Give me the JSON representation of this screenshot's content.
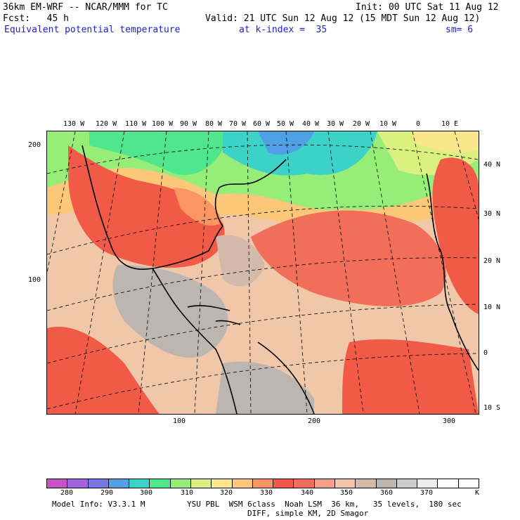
{
  "header": {
    "model": "36km EM-WRF -- NCAR/MMM for TC",
    "init": "Init: 00 UTC Sat 11 Aug 12",
    "fcst": "Fcst:   45 h",
    "valid": "Valid: 21 UTC Sun 12 Aug 12 (15 MDT Sun 12 Aug 12)",
    "field": "Equivalent potential temperature",
    "level": "at k-index =  35",
    "smooth": "sm= 6"
  },
  "map": {
    "top_lon_labels": [
      "130 W",
      "120 W",
      "110 W",
      "100 W",
      "90 W",
      "80 W",
      "70 W",
      "60 W",
      "50 W",
      "40 W",
      "30 W",
      "20 W",
      "10 W",
      "0",
      "10 E"
    ],
    "right_lat_labels": [
      "40 N",
      "30 N",
      "20 N",
      "10 N",
      "0",
      "10 S"
    ],
    "left_grid_labels": [
      "200",
      "100"
    ],
    "bottom_grid_labels": [
      "100",
      "200",
      "300"
    ]
  },
  "colorbar": {
    "colors": [
      "#c850c8",
      "#a064dc",
      "#7878e6",
      "#50a0e6",
      "#3cd2c8",
      "#50e68c",
      "#96ee78",
      "#dcf080",
      "#fae68c",
      "#fac878",
      "#fa9664",
      "#f05a46",
      "#f06e5a",
      "#f5a08c",
      "#f0c7a8",
      "#d2b9aa",
      "#bdb5b0",
      "#cccccc",
      "#ebebeb",
      "#ffffff",
      "#ffffff"
    ],
    "labels": [
      "280",
      "290",
      "300",
      "310",
      "320",
      "330",
      "340",
      "350",
      "360",
      "370"
    ],
    "unit": "K"
  },
  "footer": {
    "line1_left": "Model Info: V3.3.1 M",
    "line1_right": "YSU PBL  WSM 6class  Noah LSM  36 km,   35 levels,  180 sec",
    "line2": "DIFF, simple KM, 2D Smagor"
  }
}
